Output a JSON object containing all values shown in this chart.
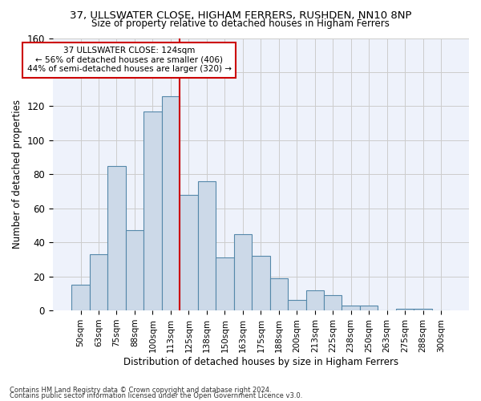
{
  "title_line1": "37, ULLSWATER CLOSE, HIGHAM FERRERS, RUSHDEN, NN10 8NP",
  "title_line2": "Size of property relative to detached houses in Higham Ferrers",
  "xlabel": "Distribution of detached houses by size in Higham Ferrers",
  "ylabel": "Number of detached properties",
  "categories": [
    "50sqm",
    "63sqm",
    "75sqm",
    "88sqm",
    "100sqm",
    "113sqm",
    "125sqm",
    "138sqm",
    "150sqm",
    "163sqm",
    "175sqm",
    "188sqm",
    "200sqm",
    "213sqm",
    "225sqm",
    "238sqm",
    "250sqm",
    "263sqm",
    "275sqm",
    "288sqm",
    "300sqm"
  ],
  "values": [
    15,
    33,
    85,
    47,
    117,
    126,
    68,
    76,
    31,
    45,
    32,
    19,
    6,
    12,
    9,
    3,
    3,
    0,
    1,
    1,
    0
  ],
  "bar_color": "#ccd9e8",
  "bar_edge_color": "#5588aa",
  "marker_color": "#cc0000",
  "annotation_line1": "37 ULLSWATER CLOSE: 124sqm",
  "annotation_line2": "← 56% of detached houses are smaller (406)",
  "annotation_line3": "44% of semi-detached houses are larger (320) →",
  "annotation_box_color": "#ffffff",
  "annotation_box_edge": "#cc0000",
  "ylim": [
    0,
    160
  ],
  "yticks": [
    0,
    20,
    40,
    60,
    80,
    100,
    120,
    140,
    160
  ],
  "grid_color": "#cccccc",
  "bg_color": "#eef2fb",
  "footer1": "Contains HM Land Registry data © Crown copyright and database right 2024.",
  "footer2": "Contains public sector information licensed under the Open Government Licence v3.0."
}
